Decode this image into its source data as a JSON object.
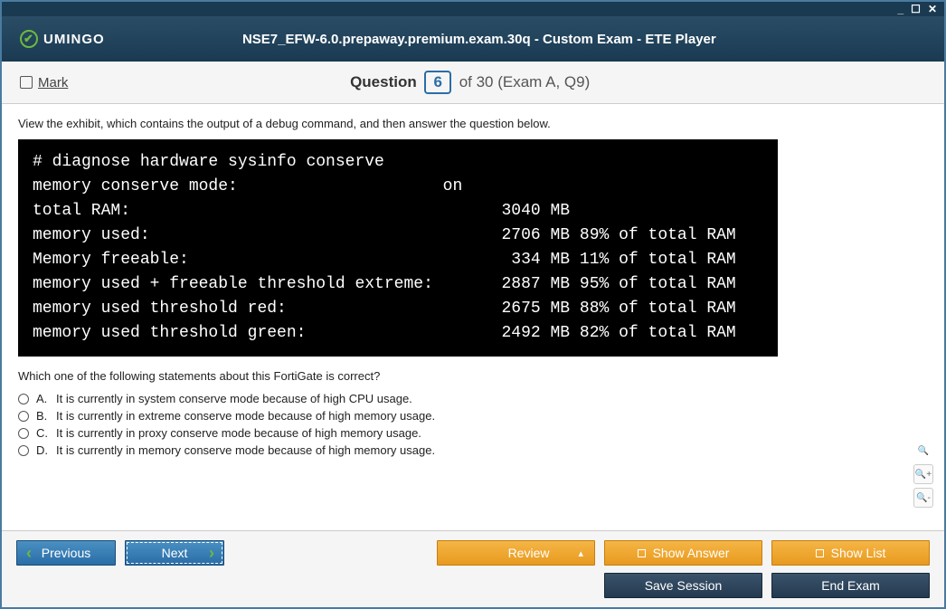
{
  "window_controls": {
    "min": "_",
    "max": "☐",
    "close": "✕"
  },
  "brand": "UMINGO",
  "title": "NSE7_EFW-6.0.prepaway.premium.exam.30q - Custom Exam - ETE Player",
  "mark_label": "Mark",
  "question": {
    "label": "Question",
    "number": "6",
    "of": "of 30 (Exam A, Q9)"
  },
  "instruction": "View the exhibit, which contains the output of a debug command, and then answer the question below.",
  "terminal": {
    "cmd": "# diagnose hardware sysinfo conserve",
    "rows": [
      {
        "label": "memory conserve mode:",
        "mid": "on",
        "val": ""
      },
      {
        "label": "total RAM:",
        "mid": "",
        "val": "3040 MB"
      },
      {
        "label": "memory used:",
        "mid": "",
        "val": "2706 MB 89% of total RAM"
      },
      {
        "label": "Memory freeable:",
        "mid": "",
        "val": " 334 MB 11% of total RAM"
      },
      {
        "label": "memory used + freeable threshold extreme:",
        "mid": "",
        "val": "2887 MB 95% of total RAM"
      },
      {
        "label": "memory used threshold red:",
        "mid": "",
        "val": "2675 MB 88% of total RAM"
      },
      {
        "label": "memory used threshold green:",
        "mid": "",
        "val": "2492 MB 82% of total RAM"
      }
    ],
    "col1_width": 42,
    "col2_width": 6
  },
  "prompt": "Which one of the following statements about this FortiGate is correct?",
  "options": [
    {
      "letter": "A.",
      "text": "It is currently in system conserve mode because of high CPU usage."
    },
    {
      "letter": "B.",
      "text": "It is currently in extreme conserve mode because of high memory usage."
    },
    {
      "letter": "C.",
      "text": "It is currently in proxy conserve mode because of high memory usage."
    },
    {
      "letter": "D.",
      "text": "It is currently in memory conserve mode because of high memory usage."
    }
  ],
  "buttons": {
    "previous": "Previous",
    "next": "Next",
    "review": "Review",
    "show_answer": "Show Answer",
    "show_list": "Show List",
    "save_session": "Save Session",
    "end_exam": "End Exam"
  },
  "colors": {
    "header_bg": "#1a3a52",
    "accent_blue": "#2a6da8",
    "accent_green": "#6fb83f",
    "accent_orange": "#e89a1f"
  }
}
